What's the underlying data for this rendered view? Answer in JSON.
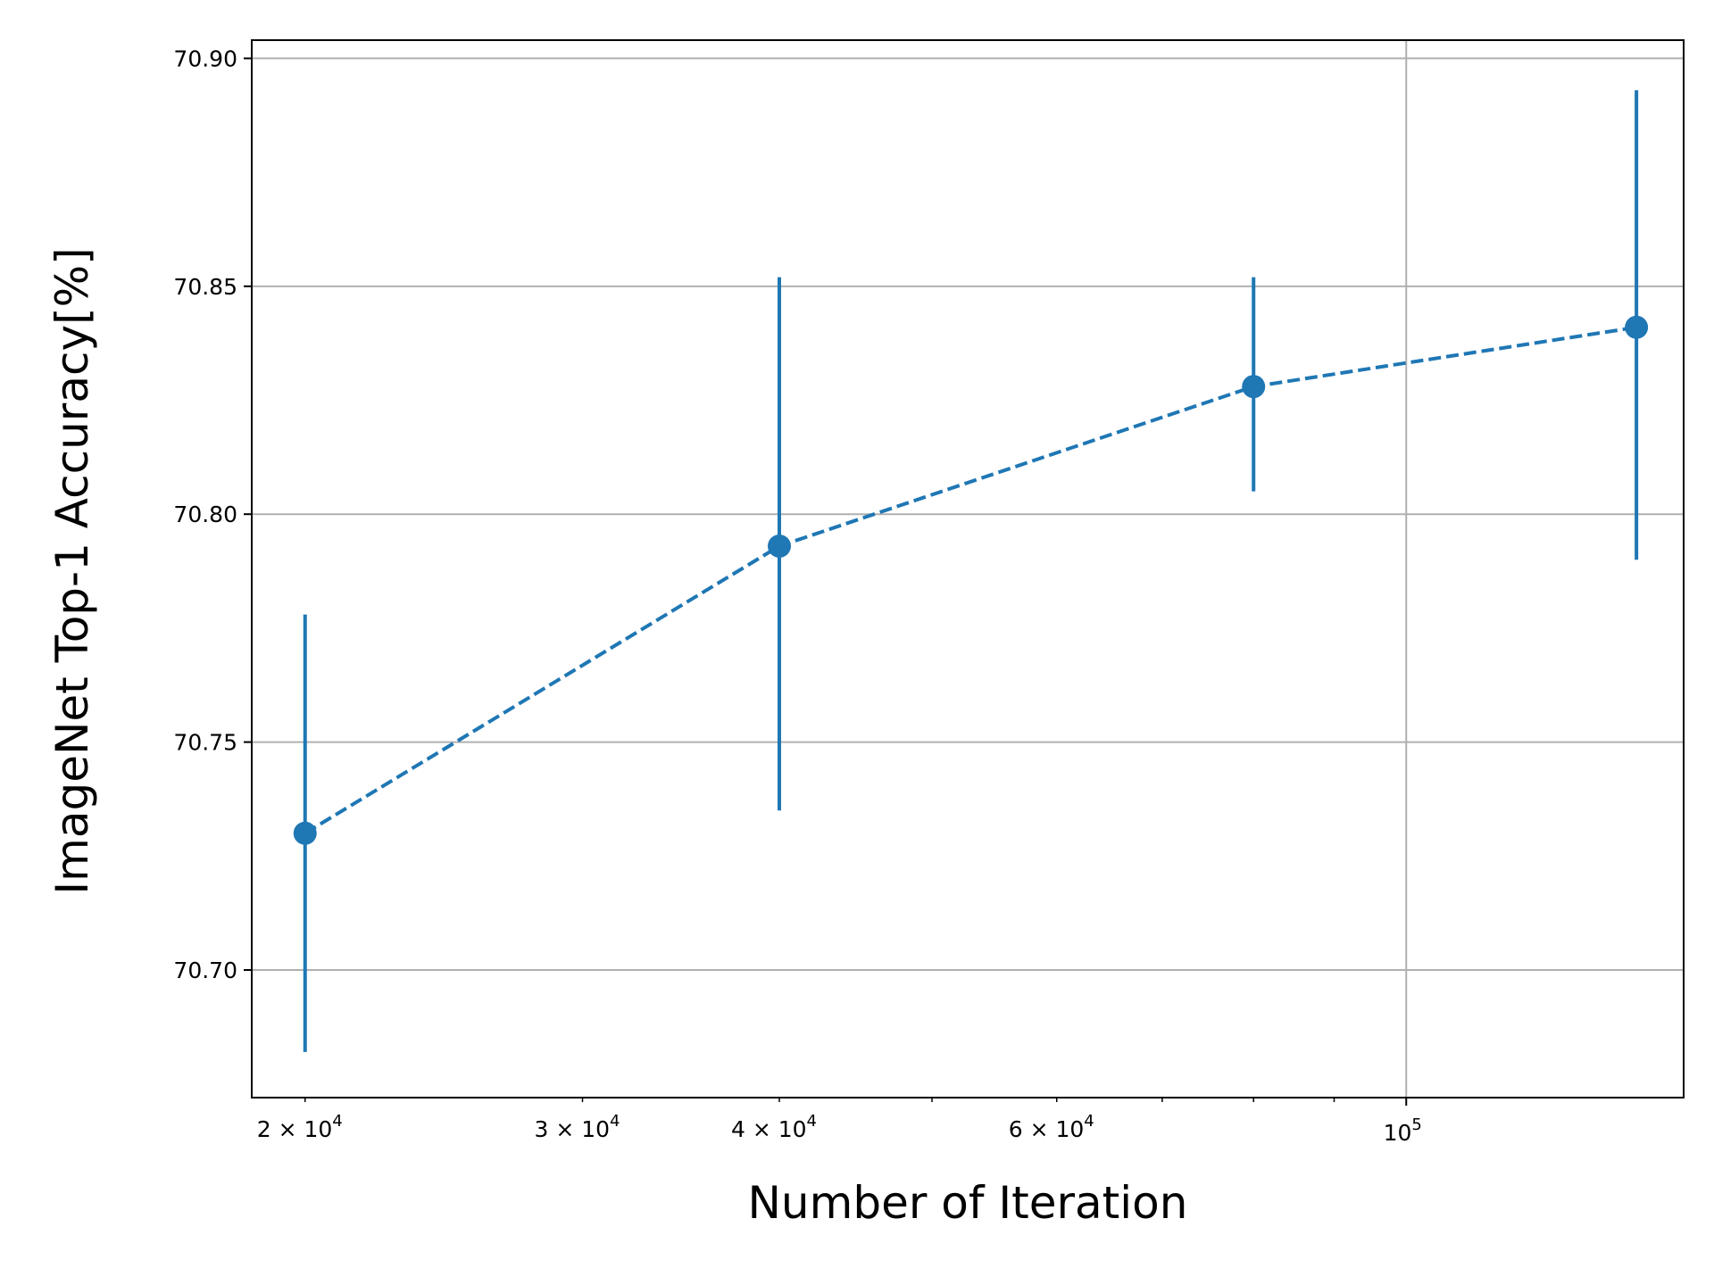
{
  "chart_data": {
    "type": "line",
    "title": "",
    "xlabel": "Number of Iteration",
    "ylabel": "ImageNet Top-1 Accuracy[%]",
    "xscale": "log",
    "xlim": [
      18500,
      150000
    ],
    "ylim": [
      70.672,
      70.904
    ],
    "grid": true,
    "legend": "none",
    "color": "#1f77b4",
    "grid_color": "#b0b0b0",
    "line_style": "dashed",
    "marker": "circle",
    "x": [
      20000,
      40000,
      80000,
      140000
    ],
    "y": [
      70.73,
      70.793,
      70.828,
      70.841
    ],
    "error_low": [
      70.682,
      70.735,
      70.805,
      70.79
    ],
    "error_high": [
      70.778,
      70.852,
      70.852,
      70.893
    ],
    "y_ticks": [
      {
        "value": 70.7,
        "label": "70.70"
      },
      {
        "value": 70.75,
        "label": "70.75"
      },
      {
        "value": 70.8,
        "label": "70.80"
      },
      {
        "value": 70.85,
        "label": "70.85"
      },
      {
        "value": 70.9,
        "label": "70.90"
      }
    ],
    "x_major_ticks": [
      {
        "value": 100000,
        "label": "10",
        "exponent": "5"
      }
    ],
    "x_minor_ticks": [
      {
        "value": 20000,
        "label": "2 × 10",
        "exponent": "4"
      },
      {
        "value": 30000,
        "label": "3 × 10",
        "exponent": "4"
      },
      {
        "value": 40000,
        "label": "4 × 10",
        "exponent": "4"
      },
      {
        "value": 50000,
        "label": "",
        "exponent": ""
      },
      {
        "value": 60000,
        "label": "6 × 10",
        "exponent": "4"
      },
      {
        "value": 70000,
        "label": "",
        "exponent": ""
      },
      {
        "value": 80000,
        "label": "",
        "exponent": ""
      },
      {
        "value": 90000,
        "label": "",
        "exponent": ""
      }
    ]
  }
}
